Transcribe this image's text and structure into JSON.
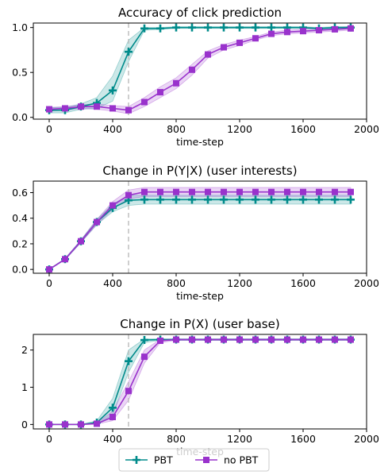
{
  "chart_data": [
    {
      "type": "line",
      "title": "Accuracy of click prediction",
      "xlabel": "time-step",
      "ylabel": "",
      "xlim": [
        -100,
        2000
      ],
      "ylim": [
        -0.02,
        1.05
      ],
      "xticks": [
        0,
        400,
        800,
        1200,
        1600,
        2000
      ],
      "xtick_labels": [
        "0",
        "400",
        "800",
        "1200",
        "1600",
        "2000"
      ],
      "yticks": [
        0.0,
        0.5,
        1.0
      ],
      "ytick_labels": [
        "0.0",
        "0.5",
        "1.0"
      ],
      "vline_x": 500,
      "x": [
        0,
        100,
        200,
        300,
        400,
        500,
        600,
        700,
        800,
        900,
        1000,
        1100,
        1200,
        1300,
        1400,
        1500,
        1600,
        1700,
        1800,
        1900
      ],
      "series": [
        {
          "name": "PBT",
          "color": "#008b8b",
          "marker": "plus",
          "values": [
            0.08,
            0.08,
            0.12,
            0.16,
            0.3,
            0.73,
            0.99,
            0.99,
            1.0,
            1.0,
            1.0,
            1.0,
            1.0,
            1.0,
            1.0,
            1.0,
            1.0,
            0.99,
            1.0,
            1.0
          ],
          "lower": [
            0.05,
            0.05,
            0.09,
            0.1,
            0.18,
            0.62,
            0.97,
            0.98,
            0.99,
            0.99,
            0.99,
            0.99,
            0.99,
            0.99,
            0.99,
            0.99,
            0.99,
            0.98,
            0.99,
            0.99
          ],
          "upper": [
            0.11,
            0.11,
            0.15,
            0.22,
            0.46,
            0.86,
            1.0,
            1.0,
            1.01,
            1.01,
            1.01,
            1.01,
            1.01,
            1.01,
            1.01,
            1.01,
            1.01,
            1.0,
            1.01,
            1.01
          ]
        },
        {
          "name": "no PBT",
          "color": "#9932cc",
          "marker": "square",
          "values": [
            0.09,
            0.1,
            0.12,
            0.12,
            0.1,
            0.08,
            0.17,
            0.28,
            0.38,
            0.53,
            0.7,
            0.78,
            0.83,
            0.88,
            0.93,
            0.95,
            0.96,
            0.97,
            0.98,
            0.99
          ],
          "lower": [
            0.07,
            0.08,
            0.1,
            0.09,
            0.07,
            0.04,
            0.12,
            0.22,
            0.32,
            0.47,
            0.66,
            0.75,
            0.8,
            0.86,
            0.91,
            0.93,
            0.94,
            0.95,
            0.96,
            0.97
          ],
          "upper": [
            0.11,
            0.12,
            0.14,
            0.15,
            0.13,
            0.12,
            0.22,
            0.34,
            0.44,
            0.59,
            0.74,
            0.81,
            0.86,
            0.9,
            0.95,
            0.97,
            0.98,
            0.99,
            1.0,
            1.01
          ]
        }
      ]
    },
    {
      "type": "line",
      "title": "Change in P(Y|X) (user interests)",
      "xlabel": "time-step",
      "ylabel": "",
      "xlim": [
        -100,
        2000
      ],
      "ylim": [
        -0.03,
        0.69
      ],
      "xticks": [
        0,
        400,
        800,
        1200,
        1600,
        2000
      ],
      "xtick_labels": [
        "0",
        "400",
        "800",
        "1200",
        "1600",
        "2000"
      ],
      "yticks": [
        0.0,
        0.2,
        0.4,
        0.6
      ],
      "ytick_labels": [
        "0.0",
        "0.2",
        "0.4",
        "0.6"
      ],
      "vline_x": 500,
      "x": [
        0,
        100,
        200,
        300,
        400,
        500,
        600,
        700,
        800,
        900,
        1000,
        1100,
        1200,
        1300,
        1400,
        1500,
        1600,
        1700,
        1800,
        1900
      ],
      "series": [
        {
          "name": "PBT",
          "color": "#008b8b",
          "marker": "plus",
          "values": [
            0.0,
            0.08,
            0.22,
            0.37,
            0.48,
            0.54,
            0.545,
            0.545,
            0.545,
            0.545,
            0.545,
            0.545,
            0.545,
            0.545,
            0.545,
            0.545,
            0.545,
            0.545,
            0.545,
            0.545
          ],
          "lower": [
            0.0,
            0.075,
            0.21,
            0.35,
            0.45,
            0.5,
            0.51,
            0.51,
            0.51,
            0.51,
            0.51,
            0.51,
            0.51,
            0.51,
            0.51,
            0.51,
            0.51,
            0.51,
            0.51,
            0.51
          ],
          "upper": [
            0.0,
            0.085,
            0.23,
            0.39,
            0.51,
            0.58,
            0.58,
            0.58,
            0.58,
            0.58,
            0.58,
            0.58,
            0.58,
            0.58,
            0.58,
            0.58,
            0.58,
            0.58,
            0.58,
            0.58
          ]
        },
        {
          "name": "no PBT",
          "color": "#9932cc",
          "marker": "square",
          "values": [
            0.0,
            0.08,
            0.22,
            0.37,
            0.5,
            0.58,
            0.605,
            0.605,
            0.605,
            0.605,
            0.605,
            0.605,
            0.605,
            0.605,
            0.605,
            0.605,
            0.605,
            0.605,
            0.605,
            0.605
          ],
          "lower": [
            0.0,
            0.075,
            0.21,
            0.35,
            0.47,
            0.55,
            0.57,
            0.57,
            0.57,
            0.57,
            0.57,
            0.57,
            0.57,
            0.57,
            0.57,
            0.57,
            0.57,
            0.57,
            0.57,
            0.57
          ],
          "upper": [
            0.0,
            0.085,
            0.23,
            0.39,
            0.53,
            0.62,
            0.64,
            0.64,
            0.64,
            0.64,
            0.64,
            0.64,
            0.64,
            0.64,
            0.64,
            0.64,
            0.64,
            0.64,
            0.64,
            0.64
          ]
        }
      ]
    },
    {
      "type": "line",
      "title": "Change in P(X) (user base)",
      "xlabel": "time-step",
      "ylabel": "",
      "xlim": [
        -100,
        2000
      ],
      "ylim": [
        -0.12,
        2.42
      ],
      "xticks": [
        0,
        400,
        800,
        1200,
        1600,
        2000
      ],
      "xtick_labels": [
        "0",
        "400",
        "800",
        "1200",
        "1600",
        "2000"
      ],
      "yticks": [
        0,
        1,
        2
      ],
      "ytick_labels": [
        "0",
        "1",
        "2"
      ],
      "vline_x": 500,
      "x": [
        0,
        100,
        200,
        300,
        400,
        500,
        600,
        700,
        800,
        900,
        1000,
        1100,
        1200,
        1300,
        1400,
        1500,
        1600,
        1700,
        1800,
        1900
      ],
      "series": [
        {
          "name": "PBT",
          "color": "#008b8b",
          "marker": "plus",
          "values": [
            0.0,
            0.0,
            0.0,
            0.05,
            0.45,
            1.7,
            2.27,
            2.28,
            2.28,
            2.28,
            2.28,
            2.28,
            2.28,
            2.28,
            2.28,
            2.28,
            2.28,
            2.28,
            2.28,
            2.28
          ],
          "lower": [
            0.0,
            0.0,
            0.0,
            0.02,
            0.25,
            1.4,
            2.2,
            2.26,
            2.26,
            2.26,
            2.26,
            2.26,
            2.26,
            2.26,
            2.26,
            2.26,
            2.26,
            2.26,
            2.26,
            2.26
          ],
          "upper": [
            0.0,
            0.0,
            0.0,
            0.1,
            0.7,
            2.0,
            2.3,
            2.3,
            2.3,
            2.3,
            2.3,
            2.3,
            2.3,
            2.3,
            2.3,
            2.3,
            2.3,
            2.3,
            2.3,
            2.3
          ]
        },
        {
          "name": "no PBT",
          "color": "#9932cc",
          "marker": "square",
          "values": [
            0.0,
            0.0,
            0.0,
            0.02,
            0.2,
            0.9,
            1.82,
            2.25,
            2.28,
            2.28,
            2.28,
            2.28,
            2.28,
            2.28,
            2.28,
            2.28,
            2.28,
            2.28,
            2.28,
            2.28
          ],
          "lower": [
            0.0,
            0.0,
            0.0,
            0.01,
            0.1,
            0.65,
            1.65,
            2.2,
            2.26,
            2.26,
            2.26,
            2.26,
            2.26,
            2.26,
            2.26,
            2.26,
            2.26,
            2.26,
            2.26,
            2.26
          ],
          "upper": [
            0.0,
            0.0,
            0.0,
            0.04,
            0.35,
            1.15,
            2.0,
            2.29,
            2.3,
            2.3,
            2.3,
            2.3,
            2.3,
            2.3,
            2.3,
            2.3,
            2.3,
            2.3,
            2.3,
            2.3
          ]
        }
      ]
    }
  ],
  "legend": {
    "placement": "bottom-center",
    "entries": [
      {
        "label": "PBT",
        "color": "#008b8b",
        "marker": "plus"
      },
      {
        "label": "no PBT",
        "color": "#9932cc",
        "marker": "square"
      }
    ]
  }
}
